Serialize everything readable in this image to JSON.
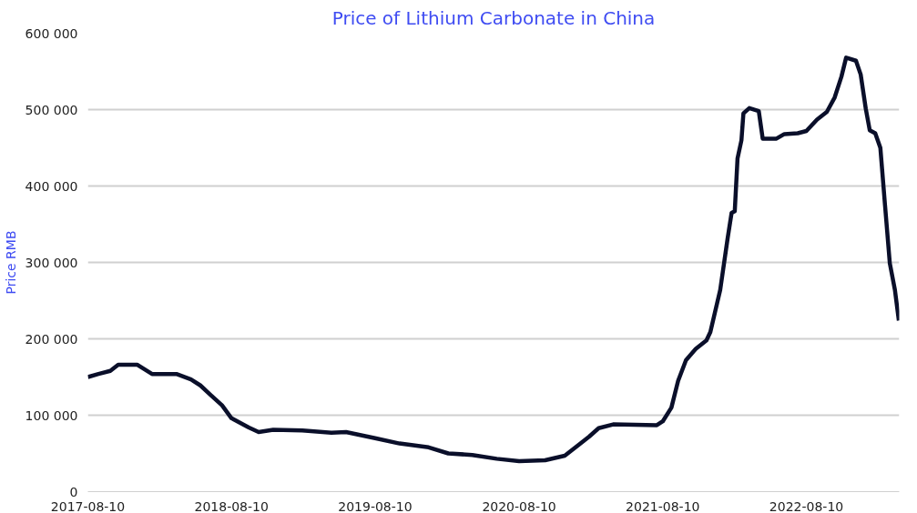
{
  "chart_data": {
    "type": "line",
    "title": "Price of Lithium Carbonate in China",
    "ylabel": "Price RMB",
    "x": [
      "2017-08-10",
      "2017-09-06",
      "2017-10-06",
      "2017-10-26",
      "2017-12-14",
      "2017-12-26",
      "2018-01-20",
      "2018-03-23",
      "2018-04-29",
      "2018-05-23",
      "2018-06-17",
      "2018-07-17",
      "2018-08-10",
      "2018-09-23",
      "2018-10-18",
      "2018-11-24",
      "2019-02-06",
      "2019-04-21",
      "2019-05-28",
      "2019-08-10",
      "2019-10-11",
      "2019-12-24",
      "2020-02-12",
      "2020-04-13",
      "2020-06-14",
      "2020-08-10",
      "2020-10-15",
      "2020-12-04",
      "2021-01-10",
      "2021-02-04",
      "2021-02-28",
      "2021-04-06",
      "2021-07-26",
      "2021-08-10",
      "2021-09-01",
      "2021-09-18",
      "2021-10-08",
      "2021-11-02",
      "2021-11-29",
      "2021-12-09",
      "2022-01-03",
      "2022-01-22",
      "2022-02-01",
      "2022-02-09",
      "2022-02-16",
      "2022-02-26",
      "2022-03-03",
      "2022-03-18",
      "2022-04-11",
      "2022-04-21",
      "2022-05-26",
      "2022-06-15",
      "2022-07-19",
      "2022-08-10",
      "2022-09-06",
      "2022-10-01",
      "2022-10-21",
      "2022-11-07",
      "2022-11-19",
      "2022-12-14",
      "2022-12-26",
      "2023-01-08",
      "2023-01-18",
      "2023-02-01",
      "2023-02-14",
      "2023-02-26",
      "2023-03-10",
      "2023-03-23",
      "2023-04-02"
    ],
    "series": [
      {
        "color": "#0a0f2a",
        "values": [
          150000,
          154000,
          158000,
          166000,
          166000,
          162000,
          154000,
          154000,
          147000,
          139000,
          127000,
          113000,
          96000,
          84000,
          78000,
          81000,
          80000,
          77000,
          78000,
          70000,
          63000,
          58000,
          50000,
          48000,
          43000,
          40000,
          41000,
          47000,
          62000,
          72000,
          83000,
          88000,
          87000,
          92000,
          110000,
          145000,
          172000,
          187000,
          198000,
          209000,
          264000,
          332000,
          365000,
          367000,
          436000,
          460000,
          495000,
          502000,
          498000,
          462000,
          462000,
          468000,
          469000,
          472000,
          487000,
          497000,
          516000,
          543000,
          568000,
          564000,
          546000,
          501000,
          473000,
          469000,
          450000,
          374000,
          299000,
          264000,
          224000
        ]
      }
    ],
    "xlim": [
      "2017-08-10",
      "2023-04-03"
    ],
    "xticks": [
      "2017-08-10",
      "2018-08-10",
      "2019-08-10",
      "2020-08-10",
      "2021-08-10",
      "2022-08-10"
    ],
    "ylim": [
      0,
      600000
    ],
    "yticks": [
      {
        "value": 0,
        "label": "0"
      },
      {
        "value": 100000,
        "label": "100 000"
      },
      {
        "value": 200000,
        "label": "200 000"
      },
      {
        "value": 300000,
        "label": "300 000"
      },
      {
        "value": 400000,
        "label": "400 000"
      },
      {
        "value": 500000,
        "label": "500 000"
      },
      {
        "value": 600000,
        "label": "600 000"
      }
    ],
    "grid": "y",
    "marker": "none",
    "line_style": "solid"
  }
}
